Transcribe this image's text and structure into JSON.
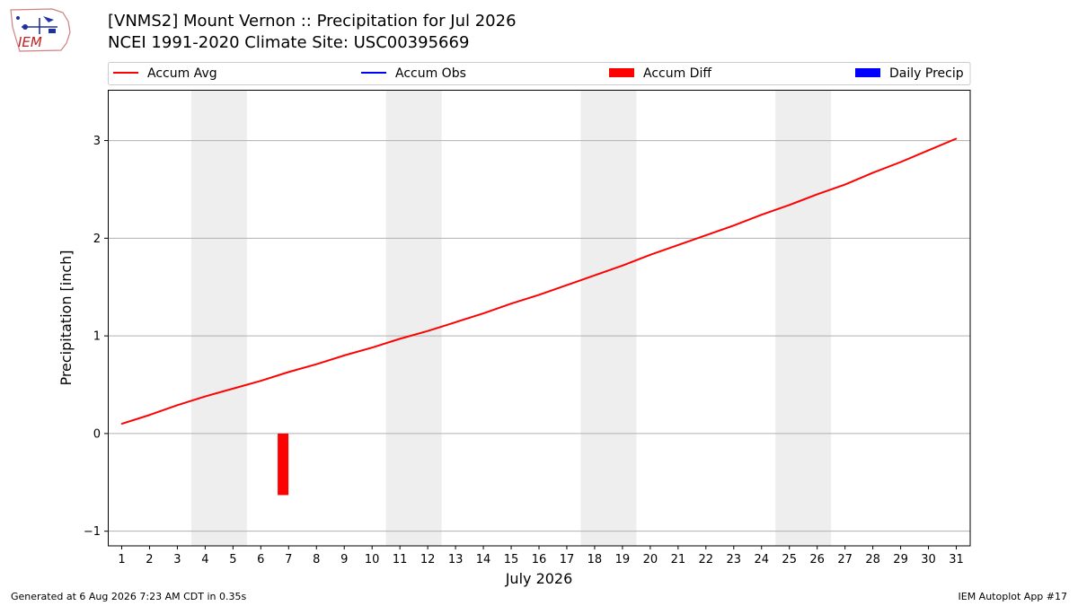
{
  "header": {
    "title_line1": "[VNMS2] Mount Vernon :: Precipitation for Jul 2026",
    "title_line2": "NCEI 1991-2020 Climate Site: USC00395669",
    "logo_text": "IEM"
  },
  "footer": {
    "left": "Generated at 6 Aug 2026 7:23 AM CDT in 0.35s",
    "right": "IEM Autoplot App #17"
  },
  "colors": {
    "accum_avg": "#ff0000",
    "accum_obs": "#0000ff",
    "accum_diff": "#ff0000",
    "daily_precip": "#0000ff",
    "weekend_shade": "#eeeeee",
    "grid": "#b0b0b0"
  },
  "chart_data": {
    "type": "line",
    "xlabel": "July 2026",
    "ylabel": "Precipitation [inch]",
    "xlim": [
      0.5,
      31.5
    ],
    "ylim": [
      -1.15,
      3.52
    ],
    "yticks": [
      -1,
      0,
      1,
      2,
      3
    ],
    "ytick_labels": [
      "−1",
      "0",
      "1",
      "2",
      "3"
    ],
    "x": [
      1,
      2,
      3,
      4,
      5,
      6,
      7,
      8,
      9,
      10,
      11,
      12,
      13,
      14,
      15,
      16,
      17,
      18,
      19,
      20,
      21,
      22,
      23,
      24,
      25,
      26,
      27,
      28,
      29,
      30,
      31
    ],
    "x_tick_labels": [
      "1",
      "2",
      "3",
      "4",
      "5",
      "6",
      "7",
      "8",
      "9",
      "10",
      "11",
      "12",
      "13",
      "14",
      "15",
      "16",
      "17",
      "18",
      "19",
      "20",
      "21",
      "22",
      "23",
      "24",
      "25",
      "26",
      "27",
      "28",
      "29",
      "30",
      "31"
    ],
    "weekend_spans": [
      [
        3.5,
        5.5
      ],
      [
        10.5,
        12.5
      ],
      [
        17.5,
        19.5
      ],
      [
        24.5,
        26.5
      ]
    ],
    "grid": "horizontal",
    "legend": {
      "placement": "top",
      "entries": [
        {
          "label": "Accum Avg",
          "kind": "line",
          "color": "#ff0000"
        },
        {
          "label": "Accum Obs",
          "kind": "line",
          "color": "#0000ff"
        },
        {
          "label": "Accum Diff",
          "kind": "bar",
          "color": "#ff0000"
        },
        {
          "label": "Daily Precip",
          "kind": "bar",
          "color": "#0000ff"
        }
      ]
    },
    "series": [
      {
        "name": "Accum Avg",
        "kind": "line",
        "values": [
          0.1,
          0.19,
          0.29,
          0.38,
          0.46,
          0.54,
          0.63,
          0.71,
          0.8,
          0.88,
          0.97,
          1.05,
          1.14,
          1.23,
          1.33,
          1.42,
          1.52,
          1.62,
          1.72,
          1.83,
          1.93,
          2.03,
          2.13,
          2.24,
          2.34,
          2.45,
          2.55,
          2.67,
          2.78,
          2.9,
          3.02
        ]
      },
      {
        "name": "Accum Diff",
        "kind": "bar",
        "x": [
          6.8
        ],
        "values": [
          -0.63
        ]
      }
    ]
  }
}
